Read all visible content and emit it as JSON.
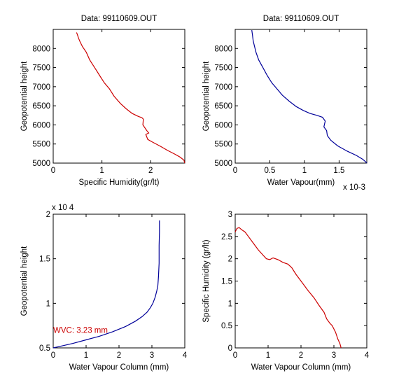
{
  "chart_data": [
    {
      "type": "line",
      "title": "Data: 99110609.OUT",
      "xlabel": "Specific Humidity(gr/lt)",
      "ylabel": "Geopotential height",
      "xlim": [
        0,
        2.7
      ],
      "ylim": [
        5000,
        8500
      ],
      "xticks": [
        0,
        1,
        2
      ],
      "yticks": [
        5000,
        5500,
        6000,
        6500,
        7000,
        7500,
        8000
      ],
      "color": "#cc0000",
      "series": [
        {
          "x": [
            0.48,
            0.5,
            0.52,
            0.55,
            0.6,
            0.68,
            0.75,
            0.85,
            0.95,
            1.05,
            1.15,
            1.25,
            1.38,
            1.5,
            1.62,
            1.75,
            1.82,
            1.85,
            1.84,
            1.92,
            1.96,
            1.9,
            1.94,
            2.02,
            2.2,
            2.35,
            2.5,
            2.6,
            2.68,
            2.7
          ],
          "y": [
            8420,
            8350,
            8270,
            8180,
            8050,
            7900,
            7700,
            7500,
            7300,
            7100,
            6950,
            6750,
            6560,
            6420,
            6300,
            6220,
            6190,
            6150,
            6000,
            5850,
            5790,
            5750,
            5620,
            5560,
            5440,
            5330,
            5230,
            5160,
            5080,
            5000
          ]
        }
      ]
    },
    {
      "type": "line",
      "title": "Data: 99110609.OUT",
      "xlabel": "Water Vapour(mm)",
      "ylabel": "Geopotential height",
      "xlim": [
        0,
        0.0019
      ],
      "ylim": [
        5000,
        8500
      ],
      "xticks": [
        0,
        0.0005,
        0.001,
        0.0015
      ],
      "xticklabels": [
        "0",
        "0.5",
        "1",
        "1.5"
      ],
      "x_multiplier": "x 10-3",
      "yticks": [
        5000,
        5500,
        6000,
        6500,
        7000,
        7500,
        8000
      ],
      "color": "#000099",
      "series": [
        {
          "x": [
            0.00024,
            0.00025,
            0.00026,
            0.00028,
            0.0003,
            0.00034,
            0.0004,
            0.00046,
            0.00053,
            0.0006,
            0.00068,
            0.00078,
            0.00088,
            0.00098,
            0.00108,
            0.00118,
            0.00126,
            0.0013,
            0.00128,
            0.00132,
            0.00133,
            0.00138,
            0.00148,
            0.00162,
            0.00175,
            0.00184,
            0.00188,
            0.0019
          ],
          "y": [
            8480,
            8350,
            8200,
            8050,
            7900,
            7700,
            7500,
            7300,
            7100,
            6950,
            6780,
            6620,
            6480,
            6380,
            6300,
            6250,
            6200,
            6100,
            5950,
            5850,
            5720,
            5600,
            5450,
            5310,
            5200,
            5100,
            5040,
            5000
          ]
        }
      ]
    },
    {
      "type": "line",
      "title": "",
      "xlabel": "Water Vapour Column (mm)",
      "ylabel": "Geopotential height",
      "xlim": [
        0,
        4
      ],
      "ylim": [
        5000,
        20000
      ],
      "xticks": [
        0,
        1,
        2,
        3,
        4
      ],
      "yticks": [
        5000,
        10000,
        15000,
        20000
      ],
      "yticklabels": [
        "0.5",
        "1",
        "1.5",
        "2"
      ],
      "y_multiplier": "x 10 4",
      "annotation": "WVC: 3.23 mm",
      "annotation_color": "#cc0000",
      "color": "#000099",
      "series": [
        {
          "x": [
            0,
            0.3,
            0.6,
            1.0,
            1.4,
            1.8,
            2.2,
            2.5,
            2.7,
            2.85,
            2.95,
            3.03,
            3.1,
            3.15,
            3.18,
            3.2,
            3.22,
            3.22,
            3.23,
            3.23
          ],
          "y": [
            5000,
            5250,
            5500,
            5900,
            6300,
            6800,
            7400,
            8000,
            8500,
            9000,
            9500,
            10000,
            10700,
            11400,
            12000,
            13000,
            14500,
            16500,
            18000,
            19300
          ]
        }
      ]
    },
    {
      "type": "line",
      "title": "",
      "xlabel": "Water Vapour Column (mm)",
      "ylabel": "Specific Humidity (gr/lt)",
      "xlim": [
        0,
        4
      ],
      "ylim": [
        0,
        3
      ],
      "xticks": [
        0,
        1,
        2,
        3,
        4
      ],
      "yticks": [
        0,
        0.5,
        1,
        1.5,
        2,
        2.5,
        3
      ],
      "color": "#cc0000",
      "series": [
        {
          "x": [
            0,
            0.05,
            0.12,
            0.2,
            0.3,
            0.4,
            0.55,
            0.7,
            0.85,
            0.95,
            1.05,
            1.15,
            1.3,
            1.45,
            1.6,
            1.72,
            1.85,
            2.0,
            2.2,
            2.4,
            2.55,
            2.7,
            2.78,
            2.88,
            2.95,
            3.05,
            3.12,
            3.18,
            3.22
          ],
          "y": [
            2.6,
            2.68,
            2.7,
            2.65,
            2.6,
            2.5,
            2.35,
            2.2,
            2.08,
            2.0,
            1.98,
            2.02,
            1.98,
            1.92,
            1.88,
            1.8,
            1.65,
            1.5,
            1.3,
            1.12,
            0.95,
            0.8,
            0.65,
            0.55,
            0.5,
            0.35,
            0.2,
            0.1,
            0.0
          ]
        }
      ]
    }
  ]
}
